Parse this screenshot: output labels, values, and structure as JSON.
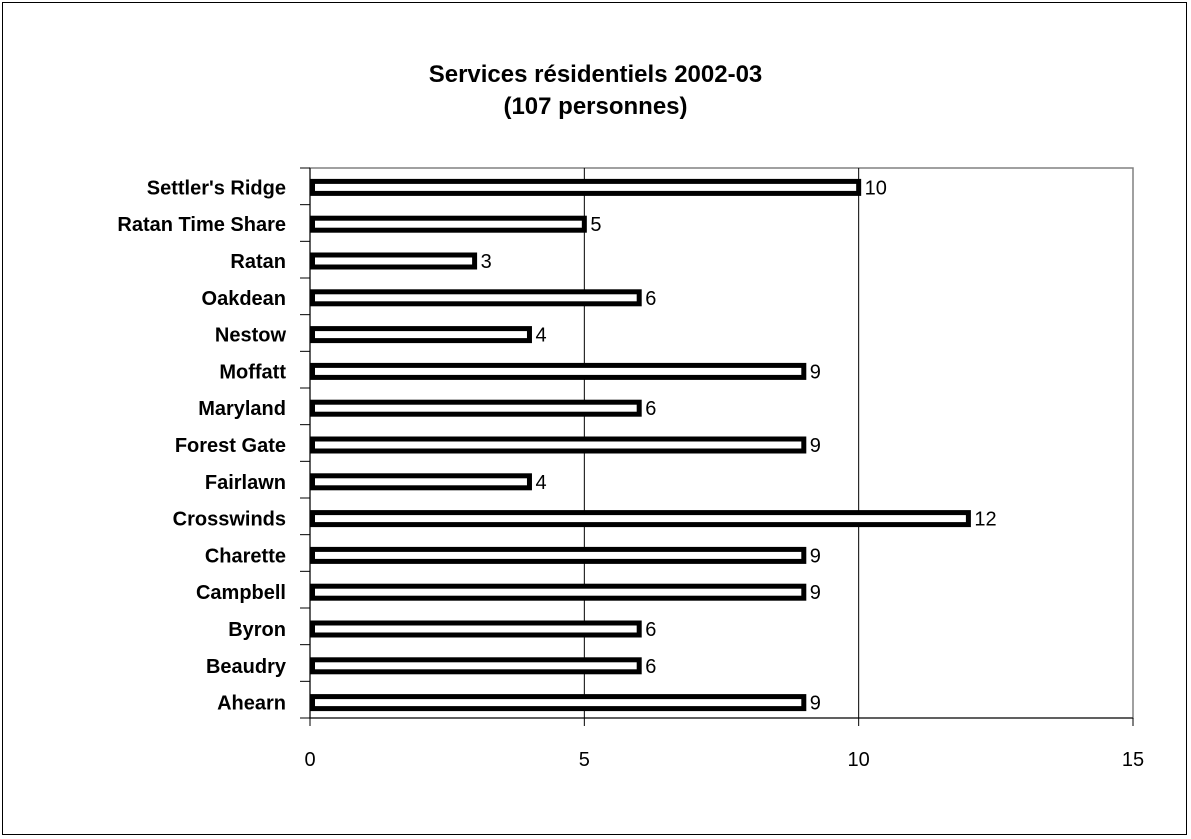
{
  "chart_data": {
    "type": "bar",
    "orientation": "horizontal",
    "title": "Services résidentiels 2002-03",
    "subtitle": "(107 personnes)",
    "categories": [
      "Settler's Ridge",
      "Ratan Time Share",
      "Ratan",
      "Oakdean",
      "Nestow",
      "Moffatt",
      "Maryland",
      "Forest Gate",
      "Fairlawn",
      "Crosswinds",
      "Charette",
      "Campbell",
      "Byron",
      "Beaudry",
      "Ahearn"
    ],
    "values": [
      10,
      5,
      3,
      6,
      4,
      9,
      6,
      9,
      4,
      12,
      9,
      9,
      6,
      6,
      9
    ],
    "xlim": [
      0,
      15
    ],
    "xticks": [
      0,
      5,
      10,
      15
    ],
    "xlabel": "",
    "ylabel": "",
    "grid": "vertical",
    "data_labels": true,
    "legend": "none",
    "colors": {
      "bar_fill": "#ffffff",
      "bar_stroke": "#000000",
      "gridline": "#000000",
      "plot_border": "#808080"
    }
  }
}
